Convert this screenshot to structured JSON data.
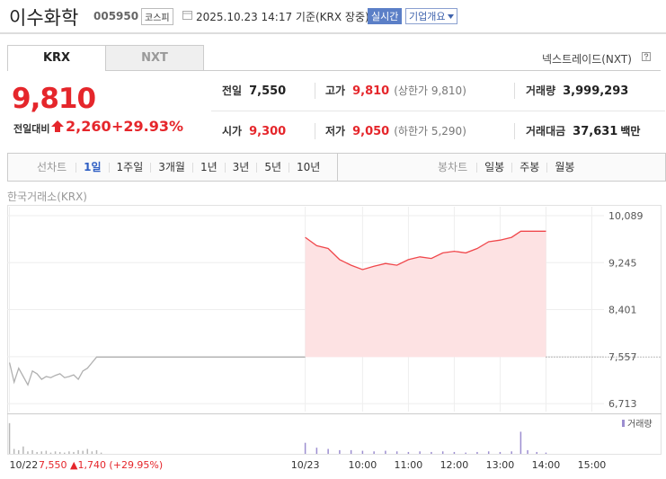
{
  "header": {
    "name": "이수화학",
    "code": "005950",
    "market": "코스피",
    "timestamp": "2025.10.23 14:17 기준(KRX 장중)",
    "realtime": "실시간",
    "company_info": "기업개요"
  },
  "tabs": [
    "KRX",
    "NXT"
  ],
  "nxt_link": "넥스트레이드(NXT)",
  "price": {
    "current": "9,810",
    "change_label": "전일대비",
    "change": "2,260",
    "change_rate": "+29.93%"
  },
  "stats": [
    [
      {
        "label": "전일",
        "value": "7,550"
      },
      {
        "label": "고가",
        "value": "9,810",
        "limit": "(상한가 9,810)"
      },
      {
        "label": "거래량",
        "value": "3,999,293"
      }
    ],
    [
      {
        "label": "시가",
        "value": "9,300"
      },
      {
        "label": "저가",
        "value": "9,050",
        "limit": "(하한가 5,290)"
      },
      {
        "label": "거래대금",
        "value": "37,631",
        "unit": "백만"
      }
    ]
  ],
  "chart_controls": {
    "line_label": "선차트",
    "periods": [
      "1일",
      "1주일",
      "3개월",
      "1년",
      "3년",
      "5년",
      "10년"
    ],
    "candle_label": "봉차트",
    "candles": [
      "일봉",
      "주봉",
      "월봉"
    ]
  },
  "exchange": "한국거래소(KRX)",
  "prev_day_summary": "7,550 ▲1,740 (+29.95%)",
  "chart_data": [
    {
      "type": "line",
      "xlim": [
        2.25,
        16.5
      ],
      "ylim": [
        6570,
        10250
      ],
      "xticks": [
        {
          "value": 2.3,
          "label": "10/22"
        },
        {
          "value": 8.75,
          "label": "10/23"
        },
        {
          "value": 10,
          "label": "10:00"
        },
        {
          "value": 11,
          "label": "11:00"
        },
        {
          "value": 12,
          "label": "12:00"
        },
        {
          "value": 13,
          "label": "13:00"
        },
        {
          "value": 14,
          "label": "14:00"
        },
        {
          "value": 15,
          "label": "15:00"
        }
      ],
      "yticks": [
        {
          "value": 10089,
          "label": "10,089"
        },
        {
          "value": 9245,
          "label": "9,245"
        },
        {
          "value": 8401,
          "label": "8,401"
        },
        {
          "value": 7557,
          "label": "7,557"
        },
        {
          "value": 6713,
          "label": "6,713"
        }
      ],
      "grid": true,
      "series": [
        {
          "color": "#b0b0b0",
          "x": [
            2.3,
            2.4,
            2.5,
            2.6,
            2.7,
            2.8,
            2.9,
            3.0,
            3.1,
            3.2,
            3.3,
            3.4,
            3.5,
            3.6,
            3.7,
            3.8,
            3.9,
            4.0,
            4.1,
            4.2,
            4.3,
            8.75
          ],
          "values": [
            7450,
            7100,
            7350,
            7200,
            7050,
            7300,
            7250,
            7150,
            7200,
            7180,
            7220,
            7250,
            7180,
            7200,
            7230,
            7150,
            7300,
            7350,
            7450,
            7550,
            7550,
            7550
          ]
        },
        {
          "color": "#f0484c",
          "fill": "#fde2e3",
          "x": [
            8.75,
            9,
            9.25,
            9.5,
            9.75,
            10,
            10.25,
            10.5,
            10.75,
            11,
            11.25,
            11.5,
            11.75,
            12,
            12.25,
            12.5,
            12.75,
            13,
            13.25,
            13.45,
            13.6,
            13.8,
            14
          ],
          "values": [
            9700,
            9550,
            9500,
            9300,
            9200,
            9120,
            9180,
            9230,
            9200,
            9300,
            9350,
            9320,
            9420,
            9450,
            9420,
            9500,
            9620,
            9650,
            9700,
            9810,
            9810,
            9810,
            9810
          ]
        }
      ]
    },
    {
      "type": "bar",
      "legend": "거래량",
      "xlim": [
        2.25,
        16.5
      ],
      "ylim": [
        0,
        300000
      ],
      "series": [
        {
          "color": "#b8b8b8",
          "x": [
            2.3,
            2.4,
            2.5,
            2.6,
            2.7,
            2.8,
            2.9,
            3.0,
            3.1,
            3.2,
            3.3,
            3.4,
            3.5,
            3.6,
            3.7,
            3.8,
            3.9,
            4.0,
            4.1,
            4.2,
            4.3
          ],
          "values": [
            250000,
            40000,
            30000,
            60000,
            20000,
            30000,
            15000,
            20000,
            25000,
            10000,
            20000,
            15000,
            10000,
            20000,
            15000,
            30000,
            25000,
            40000,
            20000,
            30000,
            10000
          ]
        },
        {
          "color": "#9c8ed0",
          "x": [
            8.75,
            9,
            9.25,
            9.5,
            9.75,
            10,
            10.25,
            10.5,
            10.75,
            11,
            11.25,
            11.5,
            11.75,
            12,
            12.25,
            12.5,
            12.75,
            13,
            13.25,
            13.45,
            13.6,
            13.8,
            14
          ],
          "values": [
            90000,
            50000,
            40000,
            30000,
            30000,
            25000,
            20000,
            25000,
            20000,
            15000,
            20000,
            15000,
            20000,
            15000,
            10000,
            15000,
            20000,
            15000,
            20000,
            180000,
            30000,
            15000,
            10000
          ]
        }
      ]
    }
  ]
}
